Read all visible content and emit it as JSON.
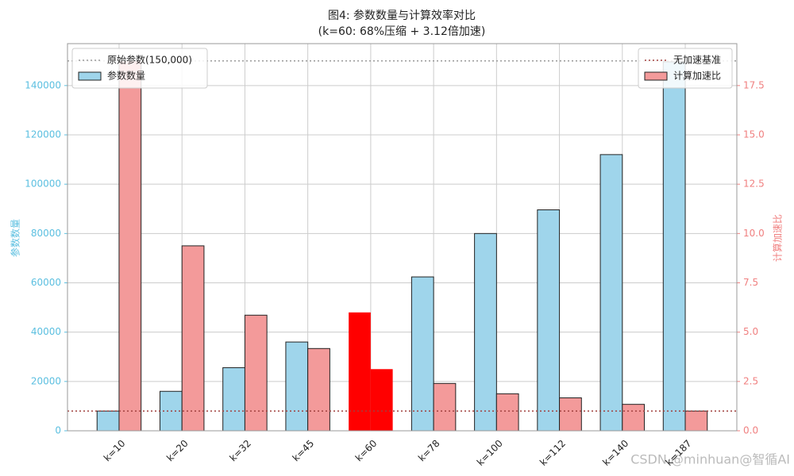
{
  "chart_data": {
    "type": "bar",
    "title": [
      "图4: 参数数量与计算效率对比",
      "(k=60: 68%压缩 + 3.12倍加速)"
    ],
    "watermark": "CSDN @minhuan@智循AI",
    "categories": [
      "k=10",
      "k=20",
      "k=32",
      "k=45",
      "k=60",
      "k=78",
      "k=100",
      "k=112",
      "k=140",
      "k=187"
    ],
    "ylabel": "参数数量",
    "y2label": "计算加速比",
    "ylim": [
      0,
      157000
    ],
    "yticks": [
      0,
      20000,
      40000,
      60000,
      80000,
      100000,
      120000,
      140000
    ],
    "y2lim": [
      0,
      19.625
    ],
    "y2ticks": [
      {
        "value": 0,
        "label": "0.0"
      },
      2.5,
      {
        "value": 5,
        "label": "5.0"
      },
      7.5,
      {
        "value": 10,
        "label": "10.0"
      },
      12.5,
      {
        "value": 15,
        "label": "15.0"
      },
      17.5
    ],
    "grid": true,
    "series": [
      {
        "name": "参数数量",
        "color": "#9fd5eb",
        "legend": "upper left",
        "colors": [
          "#9fd5eb",
          "#9fd5eb",
          "#9fd5eb",
          "#9fd5eb",
          "#ff0000",
          "#9fd5eb",
          "#9fd5eb",
          "#9fd5eb",
          "#9fd5eb",
          "#9fd5eb"
        ],
        "values": [
          8000,
          16000,
          25600,
          36000,
          48000,
          62400,
          80000,
          89600,
          112000,
          149600
        ]
      },
      {
        "name": "计算加速比",
        "color": "#f39a9a",
        "axis": "y2",
        "legend": "upper right",
        "colors": [
          "#f39a9a",
          "#f39a9a",
          "#f39a9a",
          "#f39a9a",
          "#ff0000",
          "#f39a9a",
          "#f39a9a",
          "#f39a9a",
          "#f39a9a",
          "#f39a9a"
        ],
        "values": [
          18.75,
          9.375,
          5.86,
          4.17,
          3.125,
          2.4,
          1.875,
          1.67,
          1.34,
          1.0
        ]
      }
    ],
    "reference_lines": [
      {
        "name": "原始参数(150,000)",
        "value": 150000,
        "color": "#999999",
        "legend": "upper left"
      },
      {
        "name": "无加速基准",
        "value": 1,
        "axis": "y2",
        "color": "#a0403f",
        "legend": "upper right"
      }
    ]
  }
}
